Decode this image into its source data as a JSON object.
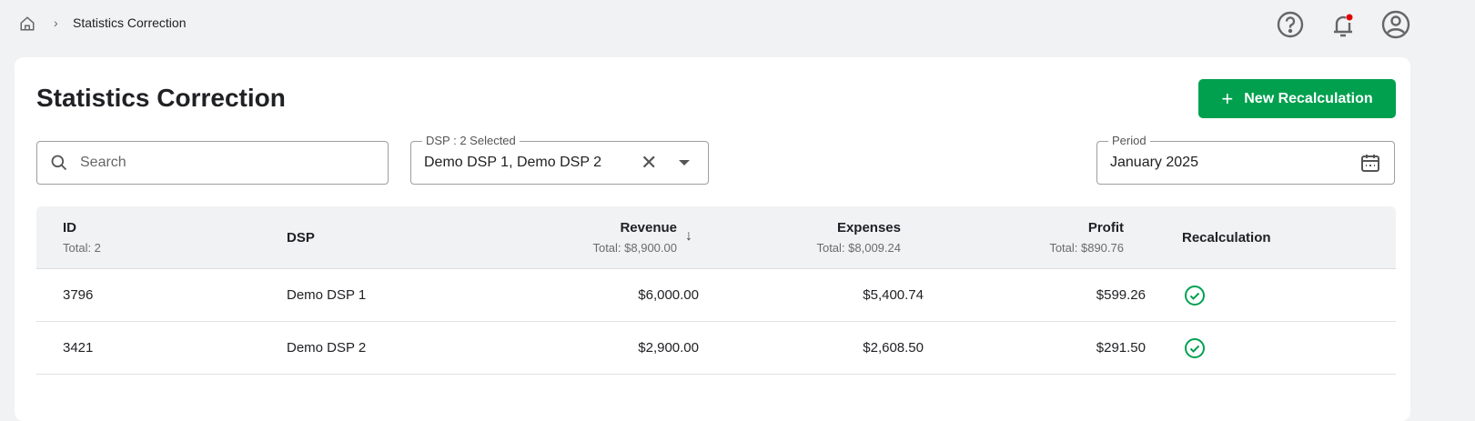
{
  "breadcrumb": {
    "current": "Statistics Correction"
  },
  "header_icons": [
    "help-icon",
    "notification-bell-icon",
    "account-icon"
  ],
  "page": {
    "title": "Statistics Correction",
    "new_button": "New Recalculation"
  },
  "filters": {
    "search_placeholder": "Search",
    "dsp_label": "DSP : 2 Selected",
    "dsp_value": "Demo DSP 1, Demo DSP 2",
    "period_label": "Period",
    "period_value": "January 2025"
  },
  "table": {
    "columns": {
      "id": "ID",
      "id_total": "Total: 2",
      "dsp": "DSP",
      "revenue": "Revenue",
      "revenue_total": "Total: $8,900.00",
      "expenses": "Expenses",
      "expenses_total": "Total: $8,009.24",
      "profit": "Profit",
      "profit_total": "Total: $890.76",
      "recalc": "Recalculation"
    },
    "sort": {
      "column": "Revenue",
      "direction": "descending"
    },
    "rows": [
      {
        "id": "3796",
        "dsp": "Demo DSP 1",
        "revenue": "$6,000.00",
        "expenses": "$5,400.74",
        "profit": "$599.26",
        "recalculated": true
      },
      {
        "id": "3421",
        "dsp": "Demo DSP 2",
        "revenue": "$2,900.00",
        "expenses": "$2,608.50",
        "profit": "$291.50",
        "recalculated": true
      }
    ]
  },
  "colors": {
    "accent": "#00a04f",
    "notification_dot": "#e00000"
  }
}
